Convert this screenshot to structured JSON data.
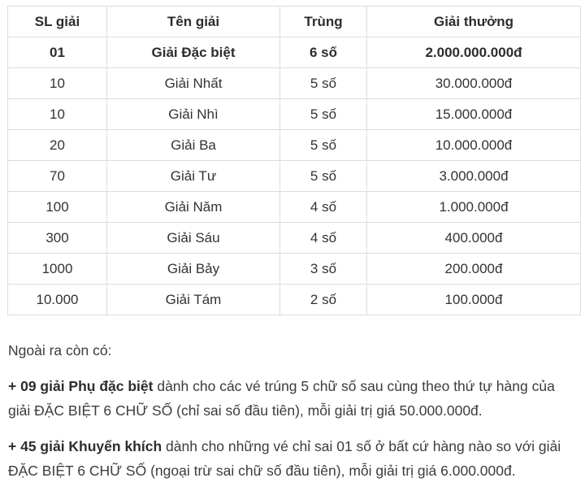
{
  "table": {
    "headers": {
      "quantity": "SL giải",
      "name": "Tên giải",
      "match": "Trùng",
      "prize": "Giải thưởng"
    },
    "rows": [
      {
        "quantity": "01",
        "name": "Giải Đặc biệt",
        "match": "6 số",
        "prize": "2.000.000.000đ"
      },
      {
        "quantity": "10",
        "name": "Giải Nhất",
        "match": "5 số",
        "prize": "30.000.000đ"
      },
      {
        "quantity": "10",
        "name": "Giải Nhì",
        "match": "5 số",
        "prize": "15.000.000đ"
      },
      {
        "quantity": "20",
        "name": "Giải Ba",
        "match": "5 số",
        "prize": "10.000.000đ"
      },
      {
        "quantity": "70",
        "name": "Giải Tư",
        "match": "5 số",
        "prize": "3.000.000đ"
      },
      {
        "quantity": "100",
        "name": "Giải Năm",
        "match": "4 số",
        "prize": "1.000.000đ"
      },
      {
        "quantity": "300",
        "name": "Giải Sáu",
        "match": "4 số",
        "prize": "400.000đ"
      },
      {
        "quantity": "1000",
        "name": "Giải Bảy",
        "match": "3 số",
        "prize": "200.000đ"
      },
      {
        "quantity": "10.000",
        "name": "Giải Tám",
        "match": "2 số",
        "prize": "100.000đ"
      }
    ]
  },
  "notes": {
    "intro": "Ngoài ra còn có:",
    "items": [
      {
        "bold": "+ 09 giải Phụ đặc biệt",
        "rest": " dành cho các vé trúng 5 chữ số sau cùng theo thứ tự hàng của giải ĐẶC BIỆT 6 CHỮ SỐ (chỉ sai số đầu tiên), mỗi giải trị giá 50.000.000đ."
      },
      {
        "bold": "+ 45 giải Khuyến khích",
        "rest": " dành cho những vé chỉ sai 01 số ở bất cứ hàng nào so với giải ĐẶC BIỆT 6 CHỮ SỐ (ngoại trừ sai chữ số đầu tiên), mỗi giải trị giá 6.000.000đ."
      }
    ]
  },
  "colors": {
    "text": "#3a3a3a",
    "heading_text": "#2d2d2d",
    "table_border": "#dddddd",
    "background": "#ffffff"
  }
}
